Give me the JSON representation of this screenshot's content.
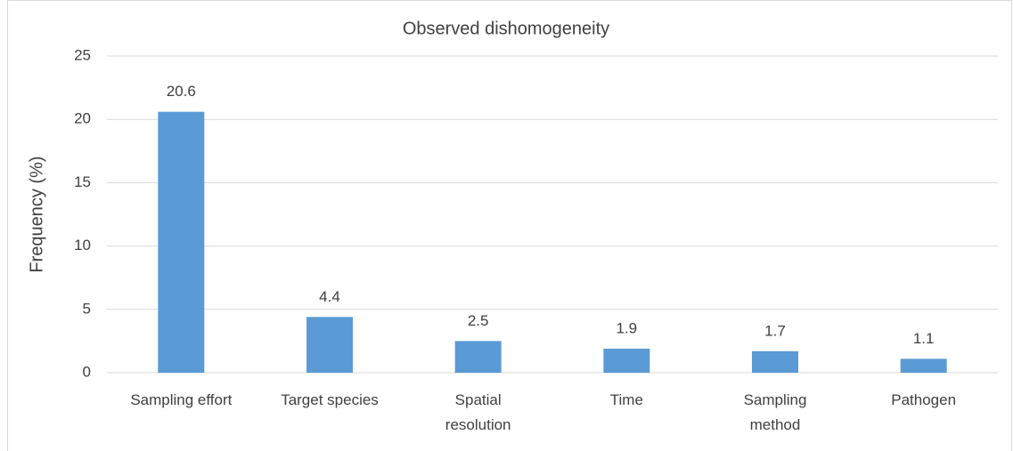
{
  "chart_data": {
    "type": "bar",
    "title": "Observed dishomogeneity",
    "y_label": "Frequency (%)",
    "categories": [
      "Sampling effort",
      "Target species",
      "Spatial\nresolution",
      "Time",
      "Sampling\nmethod",
      "Pathogen"
    ],
    "values": [
      20.6,
      4.4,
      2.5,
      1.9,
      1.7,
      1.1
    ],
    "color": "#5b9bd5",
    "ylim": [
      0,
      25
    ],
    "yticks": [
      0,
      5,
      10,
      15,
      20,
      25
    ],
    "grid": true
  }
}
